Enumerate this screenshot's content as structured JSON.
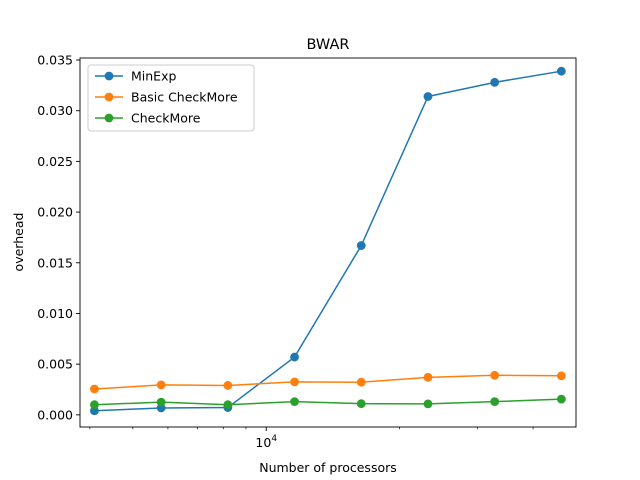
{
  "chart_data": {
    "type": "line",
    "title": "BWAR",
    "xlabel": "Number of processors",
    "ylabel": "overhead",
    "xscale": "log",
    "x": [
      4096,
      5793,
      8192,
      11585,
      16384,
      23170,
      32768,
      46341
    ],
    "xlim": [
      3800,
      50000
    ],
    "ylim": [
      -0.0012,
      0.0352
    ],
    "yticks": [
      0.0,
      0.005,
      0.01,
      0.015,
      0.02,
      0.025,
      0.03,
      0.035
    ],
    "ytick_labels": [
      "0.000",
      "0.005",
      "0.010",
      "0.015",
      "0.020",
      "0.025",
      "0.030",
      "0.035"
    ],
    "xticks_major": [
      10000
    ],
    "xtick_major_labels": [
      {
        "base": "10",
        "exp": "4"
      }
    ],
    "xticks_minor": [
      4000,
      5000,
      6000,
      7000,
      8000,
      9000,
      20000,
      30000,
      40000
    ],
    "grid": false,
    "legend": "top-left",
    "series": [
      {
        "name": "MinExp",
        "color": "#1f77b4",
        "values": [
          0.0004,
          0.00068,
          0.00072,
          0.0057,
          0.0167,
          0.0314,
          0.0328,
          0.0339
        ]
      },
      {
        "name": "Basic CheckMore",
        "color": "#ff7f0e",
        "values": [
          0.00255,
          0.00295,
          0.0029,
          0.00325,
          0.00322,
          0.0037,
          0.0039,
          0.00385
        ]
      },
      {
        "name": "CheckMore",
        "color": "#2ca02c",
        "values": [
          0.001,
          0.00125,
          0.001,
          0.0013,
          0.0011,
          0.00108,
          0.0013,
          0.00155
        ]
      }
    ]
  }
}
